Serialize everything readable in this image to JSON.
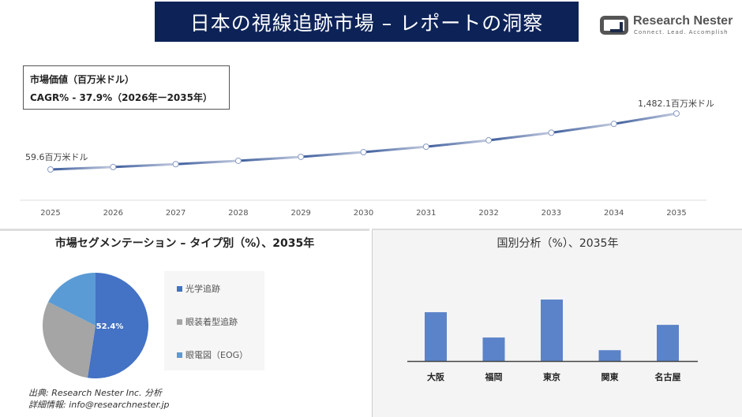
{
  "header": {
    "title": "日本の視線追跡市場 – レポートの洞察"
  },
  "logo": {
    "name": "Research Nester",
    "tagline": "Connect. Lead. Accomplish"
  },
  "infobox": {
    "line1": "市場価値（百万米ドル）",
    "line2": "CAGR% - 37.9%（2026年ー2035年）"
  },
  "chart_data": [
    {
      "type": "line",
      "title": "",
      "x": [
        "2025",
        "2026",
        "2027",
        "2028",
        "2029",
        "2030",
        "2031",
        "2032",
        "2033",
        "2034",
        "2035"
      ],
      "values": [
        59.6,
        82.2,
        113.3,
        156.3,
        215.5,
        297.2,
        409.8,
        565.2,
        779.4,
        1074.8,
        1482.1
      ],
      "data_labels": {
        "first": "59.6百万米ドル",
        "last": "1,482.1百万米ドル"
      },
      "unit": "百万米ドル",
      "grid": false,
      "colors": [
        "#3a5a9a",
        "#c5cde0"
      ]
    },
    {
      "type": "pie",
      "title": "市場セグメンテーション – タイプ別（%）、2035年",
      "categories": [
        "光学追跡",
        "眼装着型追跡",
        "眼電図（EOG）"
      ],
      "values": [
        52.4,
        30.0,
        17.6
      ],
      "data_labels": [
        "52.4%"
      ],
      "colors": [
        "#4472c4",
        "#a5a5a5",
        "#5b9bd5"
      ],
      "legend": "right"
    },
    {
      "type": "bar",
      "title": "国別分析（%）、2035年",
      "categories": [
        "大阪",
        "福岡",
        "東京",
        "関東",
        "名古屋"
      ],
      "values": [
        27,
        13,
        34,
        6,
        20
      ],
      "color": "#5b83c9"
    }
  ],
  "source": {
    "line1": "出典: Research Nester Inc. 分析",
    "line2": "詳細情報: info@researchnester.jp"
  }
}
